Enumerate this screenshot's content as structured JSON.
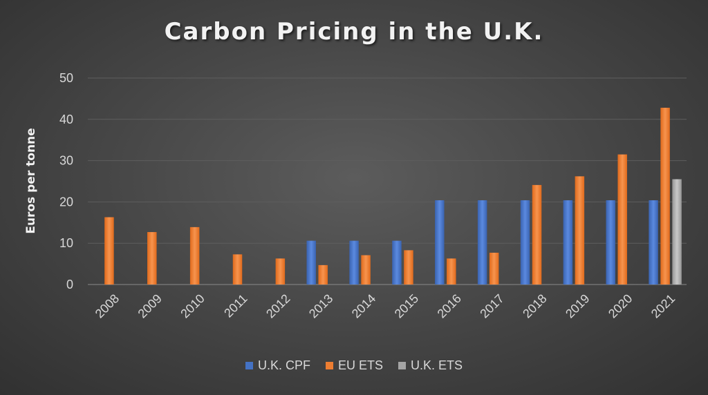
{
  "chart_data": {
    "type": "bar",
    "title": "Carbon Pricing in the U.K.",
    "ylabel": "Euros per tonne",
    "xlabel": "",
    "ylim": [
      0,
      50
    ],
    "yticks": [
      0,
      10,
      20,
      30,
      40,
      50
    ],
    "grid": true,
    "legend_position": "bottom",
    "categories": [
      "2008",
      "2009",
      "2010",
      "2011",
      "2012",
      "2013",
      "2014",
      "2015",
      "2016",
      "2017",
      "2018",
      "2019",
      "2020",
      "2021"
    ],
    "series": [
      {
        "name": "U.K. CPF",
        "color": "#4472c4",
        "values": [
          null,
          null,
          null,
          null,
          null,
          10.6,
          10.6,
          10.6,
          20.4,
          20.4,
          20.4,
          20.4,
          20.4,
          20.4
        ]
      },
      {
        "name": "EU ETS",
        "color": "#ed7d31",
        "values": [
          16.3,
          12.7,
          13.9,
          7.3,
          6.3,
          4.7,
          7.1,
          8.3,
          6.3,
          7.7,
          24.1,
          26.2,
          31.5,
          42.8
        ]
      },
      {
        "name": "U.K. ETS",
        "color": "#a5a5a5",
        "values": [
          null,
          null,
          null,
          null,
          null,
          null,
          null,
          null,
          null,
          null,
          null,
          null,
          null,
          25.5
        ]
      }
    ]
  }
}
